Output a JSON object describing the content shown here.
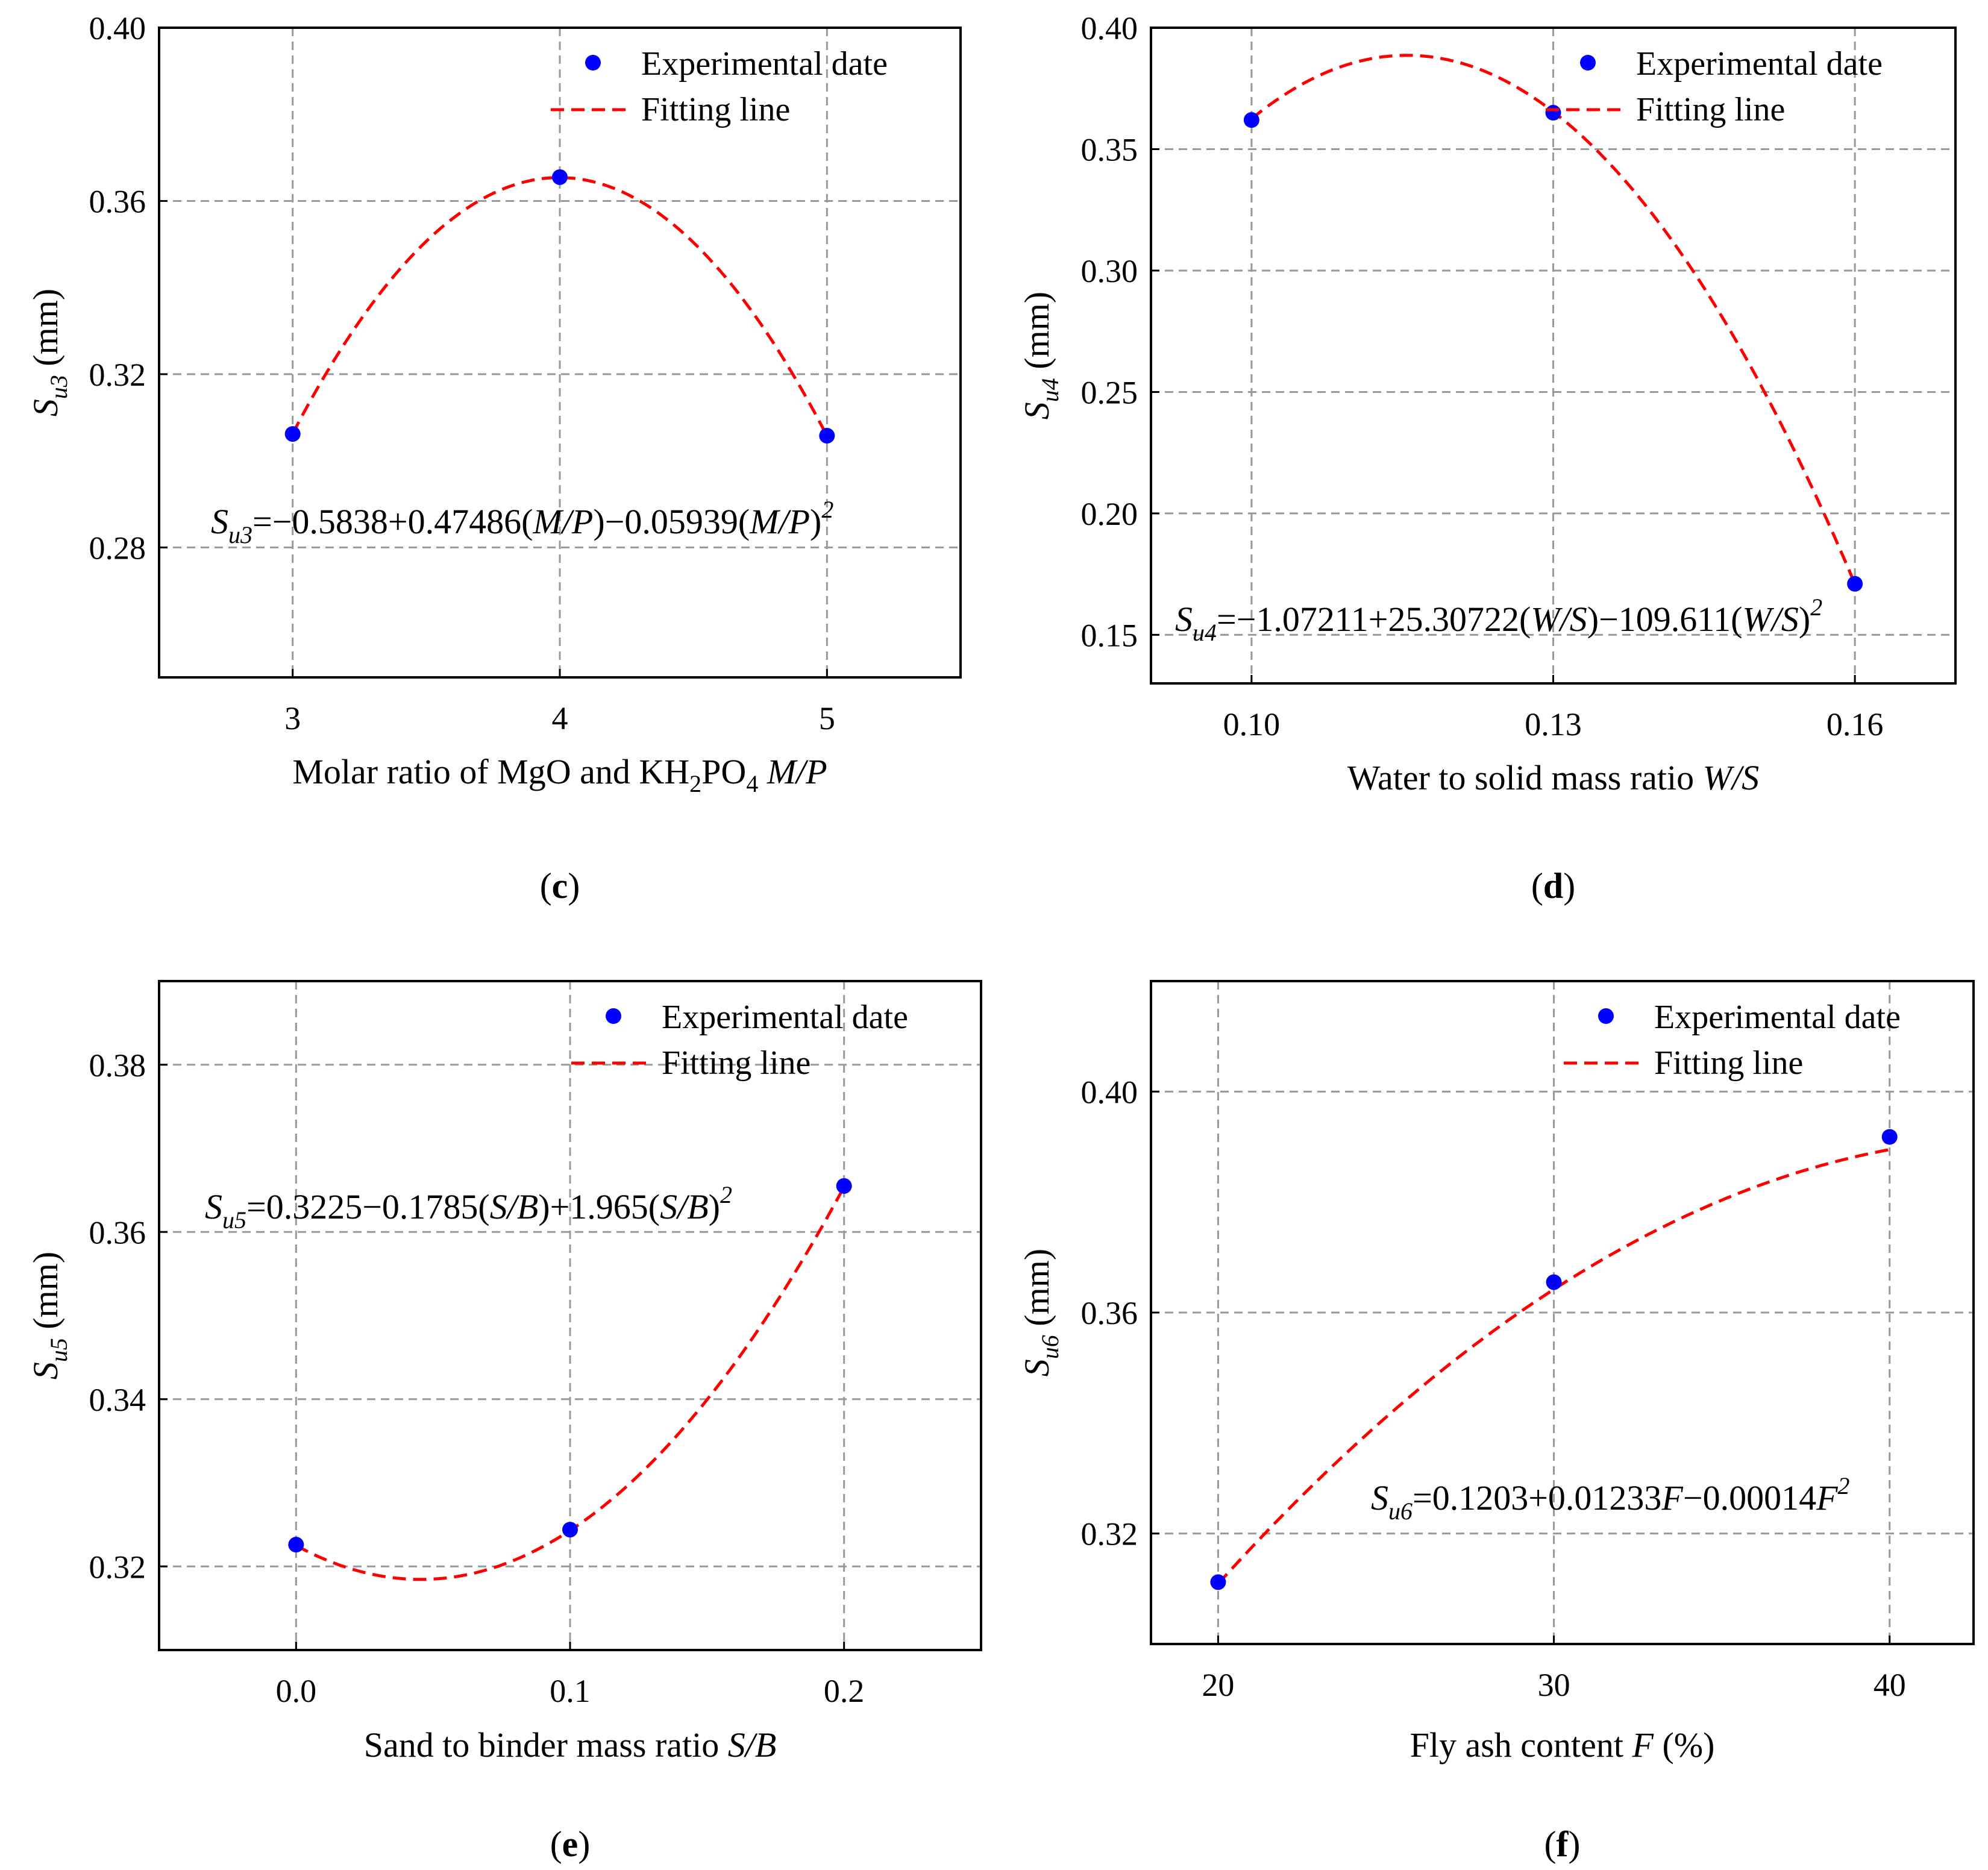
{
  "colors": {
    "points": "#0000ff",
    "fit": "#ff0000",
    "grid": "#999999"
  },
  "chart_data": [
    {
      "panel": "c",
      "type": "scatter",
      "legend": {
        "points": "Experimental date",
        "fit": "Fitting line",
        "placement": "top-right"
      },
      "xlabel": {
        "pre": "Molar ratio of MgO and KH",
        "s1": "2",
        "mid": "PO",
        "s2": "4",
        "var": "M/P"
      },
      "ylabel": {
        "S": "S",
        "sub": "u3",
        "unit": " (mm)"
      },
      "xlim": [
        2.5,
        5.5
      ],
      "ylim": [
        0.25,
        0.4
      ],
      "xticks": [
        3,
        4,
        5
      ],
      "xticklabels": [
        "3",
        "4",
        "5"
      ],
      "yticks": [
        0.28,
        0.32,
        0.36,
        0.4
      ],
      "yticklabels": [
        "0.28",
        "0.32",
        "0.36",
        "0.40"
      ],
      "x": [
        3,
        4,
        5
      ],
      "y": [
        0.3062,
        0.3655,
        0.3058
      ],
      "fit": {
        "coef": [
          -0.5838,
          0.47486,
          -0.05939
        ],
        "range": [
          3,
          5
        ]
      },
      "equation": {
        "lhs": "S",
        "sub": "u3",
        "parts": [
          {
            "t": "=−0.5838+0.47486(",
            "i": false
          },
          {
            "t": "M/P",
            "i": true
          },
          {
            "t": ")−0.05939(",
            "i": false
          },
          {
            "t": "M/P",
            "i": true
          },
          {
            "t": ")",
            "i": false
          }
        ],
        "sup": "2"
      }
    },
    {
      "panel": "d",
      "type": "scatter",
      "legend": {
        "points": "Experimental date",
        "fit": "Fitting line",
        "placement": "top-right"
      },
      "xlabel": {
        "pre": "Water to solid mass ratio ",
        "var": "W/S"
      },
      "ylabel": {
        "S": "S",
        "sub": "u4",
        "unit": " (mm)"
      },
      "xlim": [
        0.09,
        0.17
      ],
      "ylim": [
        0.13,
        0.4
      ],
      "xticks": [
        0.1,
        0.13,
        0.16
      ],
      "xticklabels": [
        "0.10",
        "0.13",
        "0.16"
      ],
      "yticks": [
        0.15,
        0.2,
        0.25,
        0.3,
        0.35,
        0.4
      ],
      "yticklabels": [
        "0.15",
        "0.20",
        "0.25",
        "0.30",
        "0.35",
        "0.40"
      ],
      "x": [
        0.1,
        0.13,
        0.16
      ],
      "y": [
        0.362,
        0.365,
        0.171
      ],
      "fit": {
        "coef": [
          -1.07211,
          25.30722,
          -109.611
        ],
        "range": [
          0.1,
          0.16
        ]
      },
      "equation": {
        "lhs": "S",
        "sub": "u4",
        "parts": [
          {
            "t": "=−1.07211+25.30722(",
            "i": false
          },
          {
            "t": "W/S",
            "i": true
          },
          {
            "t": ")−109.611(",
            "i": false
          },
          {
            "t": "W/S",
            "i": true
          },
          {
            "t": ")",
            "i": false
          }
        ],
        "sup": "2"
      }
    },
    {
      "panel": "e",
      "type": "scatter",
      "legend": {
        "points": "Experimental date",
        "fit": "Fitting line",
        "placement": "top-right"
      },
      "xlabel": {
        "pre": "Sand to binder mass ratio ",
        "var": "S/B"
      },
      "ylabel": {
        "S": "S",
        "sub": "u5",
        "unit": " (mm)"
      },
      "xlim": [
        -0.05,
        0.25
      ],
      "ylim": [
        0.31,
        0.39
      ],
      "xticks": [
        0.0,
        0.1,
        0.2
      ],
      "xticklabels": [
        "0.0",
        "0.1",
        "0.2"
      ],
      "yticks": [
        0.32,
        0.34,
        0.36,
        0.38
      ],
      "yticklabels": [
        "0.32",
        "0.34",
        "0.36",
        "0.38"
      ],
      "x": [
        0.0,
        0.1,
        0.2
      ],
      "y": [
        0.3226,
        0.3244,
        0.3655
      ],
      "fit": {
        "coef": [
          0.3225,
          -0.1785,
          1.965
        ],
        "range": [
          0.0,
          0.2
        ]
      },
      "equation": {
        "lhs": "S",
        "sub": "u5",
        "parts": [
          {
            "t": "=0.3225−0.1785(",
            "i": false
          },
          {
            "t": "S/B",
            "i": true
          },
          {
            "t": ")+1.965(",
            "i": false
          },
          {
            "t": "S/B",
            "i": true
          },
          {
            "t": ")",
            "i": false
          }
        ],
        "sup": "2"
      }
    },
    {
      "panel": "f",
      "type": "scatter",
      "legend": {
        "points": "Experimental date",
        "fit": "Fitting line",
        "placement": "top-right"
      },
      "xlabel": {
        "pre": "Fly ash content ",
        "var": "F",
        "post": " (%)"
      },
      "ylabel": {
        "S": "S",
        "sub": "u6",
        "unit": " (mm)"
      },
      "xlim": [
        18,
        42.5
      ],
      "ylim": [
        0.3,
        0.42
      ],
      "xticks": [
        20,
        30,
        40
      ],
      "xticklabels": [
        "20",
        "30",
        "40"
      ],
      "yticks": [
        0.32,
        0.36,
        0.4
      ],
      "yticklabels": [
        "0.32",
        "0.36",
        "0.40"
      ],
      "x": [
        20,
        30,
        40
      ],
      "y": [
        0.3112,
        0.3655,
        0.3918
      ],
      "fit": {
        "coef": [
          0.1203,
          0.01233,
          -0.00014
        ],
        "range": [
          20,
          40
        ]
      },
      "equation": {
        "lhs": "S",
        "sub": "u6",
        "parts": [
          {
            "t": "=0.1203+0.01233",
            "i": false
          },
          {
            "t": "F",
            "i": true
          },
          {
            "t": "−0.00014",
            "i": false
          },
          {
            "t": "F",
            "i": true
          }
        ],
        "sup": "2"
      }
    }
  ]
}
